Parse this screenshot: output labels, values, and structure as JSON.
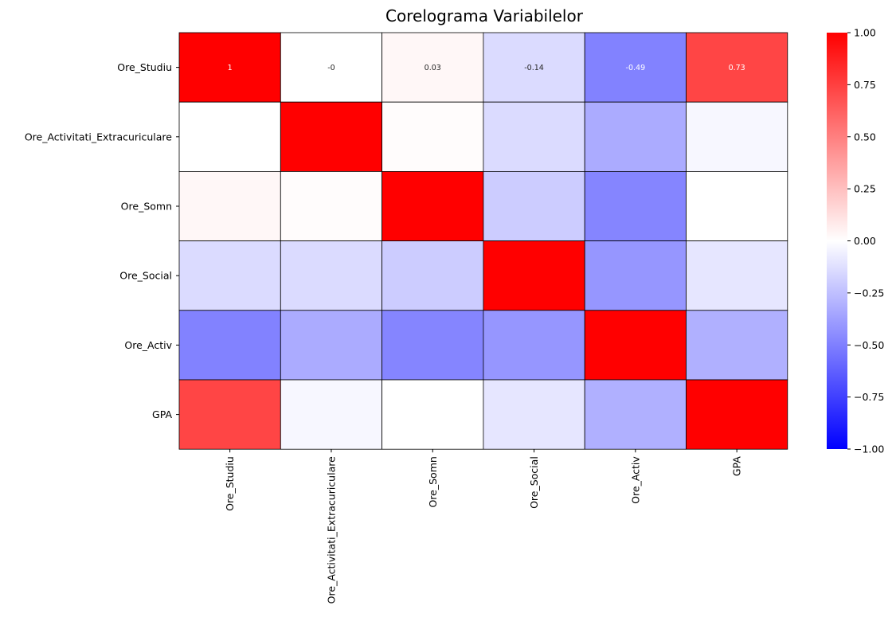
{
  "chart_data": {
    "type": "heatmap",
    "title": "Corelograma Variabilelor",
    "row_labels": [
      "Ore_Studiu",
      "Ore_Activitati_Extracuriculare",
      "Ore_Somn",
      "Ore_Social",
      "Ore_Activ",
      "GPA"
    ],
    "col_labels": [
      "Ore_Studiu",
      "Ore_Activitati_Extracuriculare",
      "Ore_Somn",
      "Ore_Social",
      "Ore_Activ",
      "GPA"
    ],
    "values": [
      [
        1,
        -0.0,
        0.03,
        -0.14,
        -0.49,
        0.73
      ],
      [
        -0.0,
        1,
        0.01,
        -0.14,
        -0.33,
        -0.03
      ],
      [
        0.03,
        0.01,
        1,
        -0.2,
        -0.48,
        0.0
      ],
      [
        -0.14,
        -0.14,
        -0.2,
        1,
        -0.41,
        -0.1
      ],
      [
        -0.49,
        -0.33,
        -0.48,
        -0.41,
        1,
        -0.31
      ],
      [
        0.73,
        -0.03,
        0.0,
        -0.1,
        -0.31,
        1
      ]
    ],
    "annotations_row": 0,
    "annotations": [
      "1",
      "-0",
      "0.03",
      "-0.14",
      "-0.49",
      "0.73"
    ],
    "colormap": {
      "low": "#0000ff",
      "mid": "#ffffff",
      "high": "#ff0000"
    },
    "vmin": -1,
    "vmax": 1,
    "colorbar_ticks": [
      "1.00",
      "0.75",
      "0.50",
      "0.25",
      "0.00",
      "−0.25",
      "−0.50",
      "−0.75",
      "−1.00"
    ],
    "colorbar_tick_values": [
      1.0,
      0.75,
      0.5,
      0.25,
      0.0,
      -0.25,
      -0.5,
      -0.75,
      -1.0
    ],
    "linecolor": "#000000"
  }
}
